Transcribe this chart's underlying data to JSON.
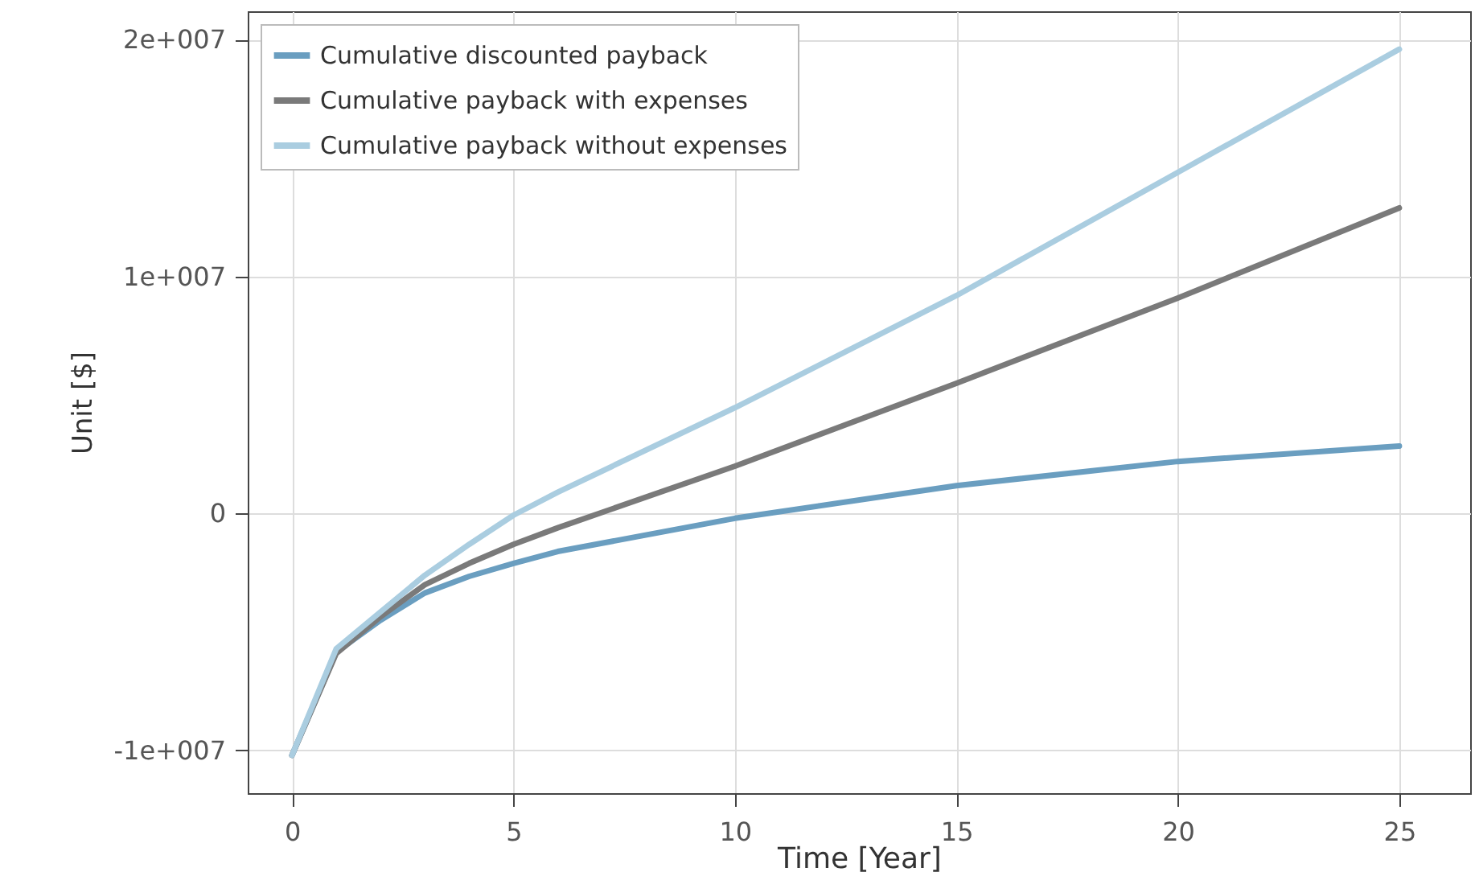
{
  "chart_data": {
    "type": "line",
    "xlabel": "Time [Year]",
    "ylabel": "Unit [$]",
    "xlim": [
      -1,
      26.6
    ],
    "xticks": [
      0,
      5,
      10,
      15,
      20,
      25
    ],
    "ylim": [
      -11800000,
      21200000
    ],
    "yticks": [
      {
        "value": -10000000,
        "label": "-1e+007"
      },
      {
        "value": 0,
        "label": "0"
      },
      {
        "value": 10000000,
        "label": "1e+007"
      },
      {
        "value": 20000000,
        "label": "2e+007"
      }
    ],
    "grid": true,
    "legend": "top left",
    "line_style": "solid",
    "x": [
      0,
      1,
      2,
      3,
      4,
      5,
      6,
      10,
      15,
      20,
      25
    ],
    "series": [
      {
        "name": "Cumulative discounted payback",
        "color": "#6a9ec0",
        "values": [
          -10200000,
          -5850000,
          -4500000,
          -3350000,
          -2650000,
          -2100000,
          -1600000,
          -200000,
          1180000,
          2200000,
          2850000
        ]
      },
      {
        "name": "Cumulative payback with expenses",
        "color": "#7a7a7a",
        "values": [
          -10200000,
          -5900000,
          -4350000,
          -3000000,
          -2100000,
          -1300000,
          -600000,
          2000000,
          5500000,
          9100000,
          12900000
        ]
      },
      {
        "name": "Cumulative payback without expenses",
        "color": "#aacde0",
        "values": [
          -10200000,
          -5700000,
          -4150000,
          -2600000,
          -1300000,
          -70000,
          900000,
          4470000,
          9200000,
          14400000,
          19600000
        ]
      }
    ]
  }
}
